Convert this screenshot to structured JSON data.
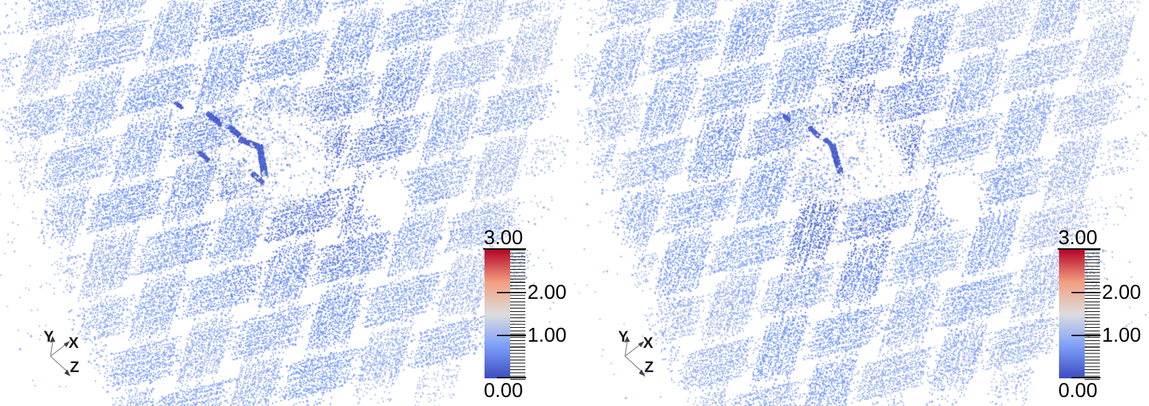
{
  "view": {
    "background": "#ffffff",
    "panel_count": 2
  },
  "axes_triad": {
    "x": "X",
    "y": "Y",
    "z": "Z"
  },
  "colorbar": {
    "labels_top_to_bottom": [
      "3.00",
      "2.00",
      "1.00",
      "0.00"
    ],
    "min": 0.0,
    "max": 3.0,
    "major_tick_values": [
      3.0,
      2.0,
      1.0,
      0.0
    ],
    "minor_ticks_per_bar": 40,
    "tick_color": "#000000",
    "label_color": "#000000"
  },
  "chart_data": {
    "type": "scatter",
    "subtype": "3d-particle-point-cloud-render, two side-by-side views of a woven fabric with central impact damage",
    "title": "",
    "legend_position": "right-of-each-panel",
    "color_field_range": [
      0.0,
      3.0
    ],
    "colormap_name": "cool-to-warm diverging (blue-white-red)",
    "colormap": [
      [
        0.0,
        "#3b4cc0"
      ],
      [
        0.25,
        "#7c9ff9"
      ],
      [
        0.5,
        "#dddddd"
      ],
      [
        0.75,
        "#f29e7f"
      ],
      [
        1.0,
        "#b40426"
      ]
    ],
    "dominant_value_range_of_fabric": [
      0.6,
      1.2
    ],
    "panels": [
      {
        "side": "left",
        "seed": 7,
        "center": [
          368,
          250
        ],
        "tow_dir_a_deg": -14,
        "tow_dir_b_deg": 106,
        "tow_pitch_a": 76,
        "tow_pitch_b": 84,
        "lines_per_tow_a": 13,
        "lines_per_tow_b": 14,
        "line_gap": 4,
        "tow_half_len_a": 480,
        "tow_half_len_b": 420,
        "fabric_half_span_across_a": 310,
        "fabric_half_span_across_b": 345,
        "corner_cut": [
          127,
          400,
          -0.941,
          0.342
        ],
        "hole_center": [
          398,
          216
        ],
        "hole_radius": 58,
        "pockets": [
          [
            435,
            242,
            45
          ],
          [
            555,
            283,
            40
          ]
        ],
        "halo_scale": 1.0,
        "debris_count": 700,
        "edge_scatter_count": 330,
        "arcs": [
          [
            78,
            -70,
            40
          ],
          [
            100,
            -60,
            30
          ],
          [
            126,
            -52,
            22
          ],
          [
            152,
            -44,
            10
          ],
          [
            86,
            55,
            115
          ],
          [
            110,
            58,
            108
          ],
          [
            96,
            148,
            215
          ],
          [
            122,
            155,
            205
          ]
        ],
        "dark_streaks": [
          [
            345,
            200,
            372,
            211,
            7
          ],
          [
            374,
            209,
            381,
            252,
            8
          ],
          [
            298,
            162,
            318,
            179,
            6
          ],
          [
            363,
            249,
            379,
            263,
            6
          ],
          [
            286,
            218,
            300,
            231,
            5
          ],
          [
            252,
            147,
            262,
            155,
            4
          ],
          [
            330,
            182,
            345,
            195,
            6
          ]
        ],
        "red_clusters": [
          [
            385,
            213,
            6
          ],
          [
            415,
            222,
            4
          ],
          [
            379,
            249,
            5
          ],
          [
            371,
            253,
            3
          ],
          [
            363,
            208,
            4
          ],
          [
            303,
            257,
            3
          ],
          [
            352,
            193,
            3
          ]
        ],
        "red_speck_count": 30
      },
      {
        "side": "right",
        "seed": 1313,
        "center": [
          368,
          250
        ],
        "tow_dir_a_deg": -14,
        "tow_dir_b_deg": 106,
        "tow_pitch_a": 76,
        "tow_pitch_b": 84,
        "lines_per_tow_a": 13,
        "lines_per_tow_b": 14,
        "line_gap": 4,
        "tow_half_len_a": 480,
        "tow_half_len_b": 420,
        "fabric_half_span_across_a": 310,
        "fabric_half_span_across_b": 345,
        "corner_cut": [
          127,
          400,
          -0.941,
          0.342
        ],
        "hole_center": [
          398,
          216
        ],
        "hole_radius": 58,
        "pockets": [
          [
            435,
            242,
            45
          ],
          [
            555,
            283,
            40
          ]
        ],
        "halo_scale": 0.8,
        "debris_count": 650,
        "edge_scatter_count": 330,
        "arcs": [
          [
            78,
            -70,
            40
          ],
          [
            100,
            -60,
            30
          ],
          [
            126,
            -52,
            22
          ],
          [
            152,
            -44,
            10
          ],
          [
            86,
            55,
            115
          ],
          [
            110,
            58,
            108
          ],
          [
            96,
            148,
            215
          ],
          [
            122,
            155,
            205
          ]
        ],
        "dark_streaks": [
          [
            371,
            208,
            383,
            249,
            7
          ],
          [
            338,
            183,
            352,
            196,
            5
          ],
          [
            300,
            165,
            310,
            173,
            4
          ],
          [
            360,
            200,
            372,
            210,
            5
          ]
        ],
        "red_clusters": [
          [
            413,
            218,
            3
          ],
          [
            382,
            240,
            3
          ],
          [
            382,
            250,
            2
          ],
          [
            350,
            192,
            2
          ]
        ],
        "red_speck_count": 26
      }
    ]
  }
}
